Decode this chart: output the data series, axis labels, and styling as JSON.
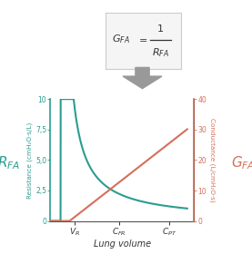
{
  "resistance_color": "#2a9d8f",
  "conductance_color": "#d4705a",
  "background_color": "#ffffff",
  "arrow_color": "#999999",
  "formula_bg": "#f5f5f5",
  "formula_border": "#cccccc",
  "text_color": "#333333",
  "x_ticks_pos": [
    0.18,
    0.5,
    0.87
  ],
  "ylim_left": [
    0,
    10
  ],
  "ylim_right": [
    0,
    40
  ],
  "yticks_left": [
    0,
    2.5,
    5.0,
    7.5,
    10
  ],
  "yticks_right": [
    0,
    10,
    20,
    30,
    40
  ],
  "ytick_labels_left": [
    "0",
    "2,5",
    "5,0",
    "7,5",
    "10"
  ],
  "ytick_labels_right": [
    "0",
    "10",
    "20",
    "30",
    "40"
  ],
  "xlabel": "Lung volume",
  "ylabel_left": "Resistance (cmH₂O·s/L)",
  "ylabel_right": "Conductance (L/cmH₂O·s)"
}
